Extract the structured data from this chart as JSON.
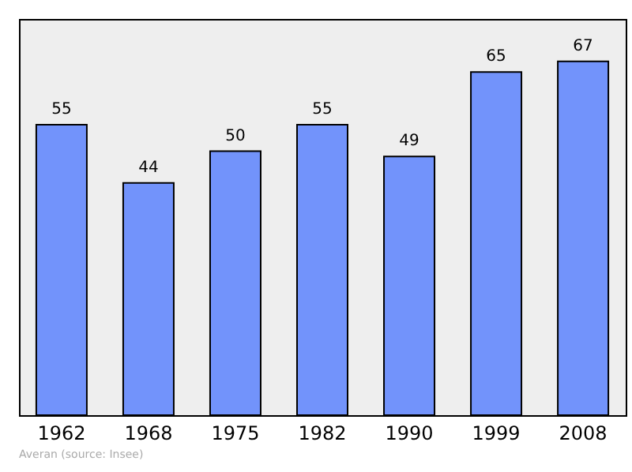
{
  "chart_data": {
    "type": "bar",
    "categories": [
      "1962",
      "1968",
      "1975",
      "1982",
      "1990",
      "1999",
      "2008"
    ],
    "values": [
      55,
      44,
      50,
      55,
      49,
      65,
      67
    ],
    "color": "#7293fb",
    "data_labels": true,
    "grid": false,
    "annotations": [
      "Averan    (source: Insee)"
    ]
  }
}
